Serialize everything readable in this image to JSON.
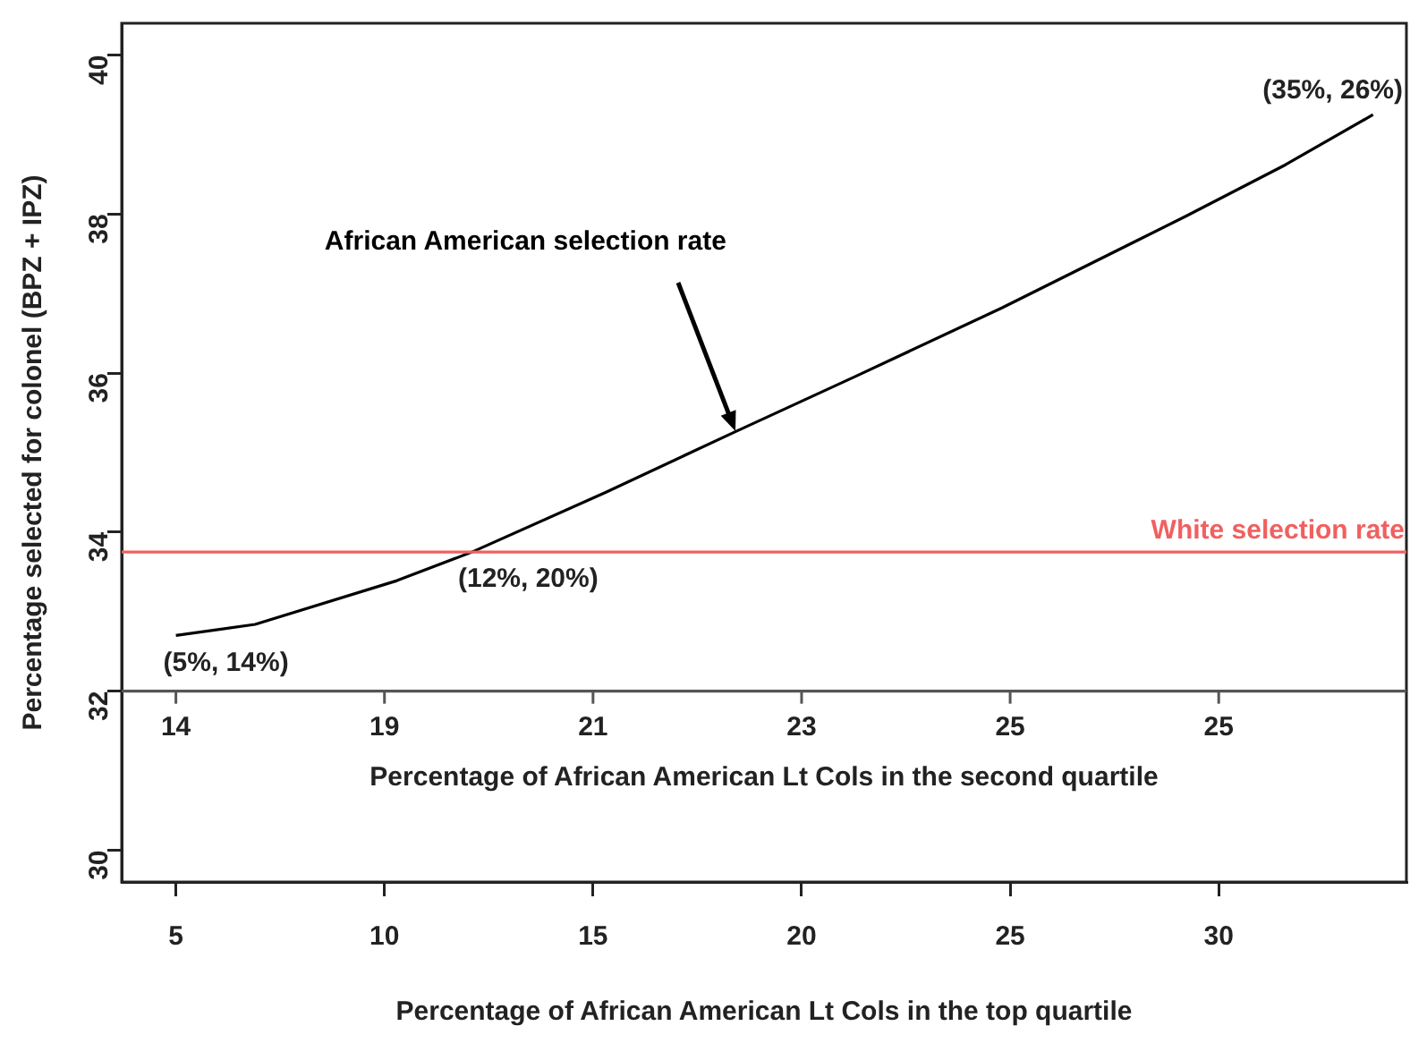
{
  "chart_data": {
    "type": "line",
    "xlabel": "Percentage of African American Lt Cols in the top quartile",
    "ylabel": "Percentage selected for colonel (BPZ + IPZ)",
    "x2label": "Percentage of African American Lt Cols in the second quartile",
    "series": [
      {
        "name": "African American selection rate",
        "color": "#000000",
        "x": [
          5,
          6.9,
          10.3,
          12.1,
          15.3,
          18.4,
          21.3,
          24.8,
          29.2,
          31.6,
          33.7
        ],
        "values": [
          32.7,
          32.84,
          33.39,
          33.75,
          34.5,
          35.26,
          35.96,
          36.82,
          37.97,
          38.62,
          39.25
        ]
      }
    ],
    "xlim": [
      3.7,
      34.5
    ],
    "xticks": [
      5,
      10,
      15,
      20,
      25,
      30
    ],
    "ylim": [
      29.6,
      40.4
    ],
    "yticks": [
      30,
      32,
      34,
      36,
      38,
      40
    ],
    "ref_lines": [
      {
        "axis": "y",
        "value": 33.75,
        "label": "White selection rate",
        "color": "#f06060"
      },
      {
        "axis": "y",
        "value": 32,
        "color": "#555555"
      }
    ],
    "annotations": [
      {
        "text": "(5%, 14%)",
        "x": 5,
        "y": 32.7
      },
      {
        "text": "(12%, 20%)",
        "x": 12.1,
        "y": 33.75
      },
      {
        "text": "(35%, 26%)",
        "x": 33.7,
        "y": 39.25
      },
      {
        "text": "14",
        "x": 5,
        "y": 32
      },
      {
        "text": "19",
        "x": 10,
        "y": 32
      },
      {
        "text": "21",
        "x": 15,
        "y": 32
      },
      {
        "text": "23",
        "x": 20,
        "y": 32
      },
      {
        "text": "25",
        "x": 25,
        "y": 32
      },
      {
        "text": "25",
        "x": 30,
        "y": 32
      }
    ],
    "grid": false,
    "legend": false,
    "marker": "none",
    "line_style": "solid"
  }
}
